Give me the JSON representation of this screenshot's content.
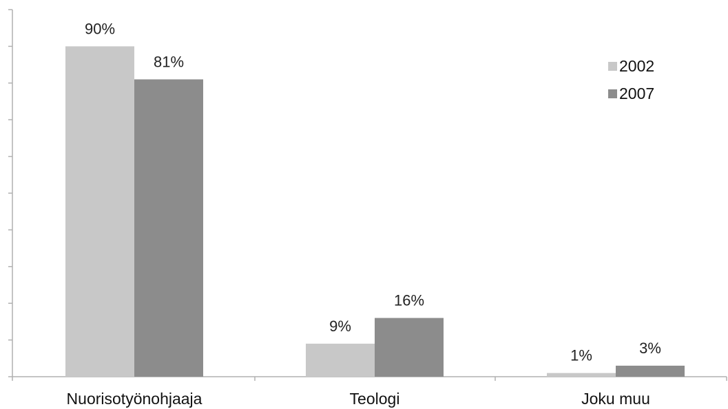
{
  "chart_data": {
    "type": "bar",
    "categories": [
      "Nuorisotyönohjaaja",
      "Teologi",
      "Joku muu"
    ],
    "series": [
      {
        "name": "2002",
        "values": [
          90,
          9,
          1
        ],
        "labels": [
          "90%",
          "9%",
          "1%"
        ],
        "color": "#c8c8c8"
      },
      {
        "name": "2007",
        "values": [
          81,
          16,
          3
        ],
        "labels": [
          "81%",
          "16%",
          "3%"
        ],
        "color": "#8c8c8c"
      }
    ],
    "ylim": [
      0,
      100
    ],
    "y_major_step": 10,
    "grid": false,
    "legend_position": "top-right",
    "axis_color": "#b0b0b0"
  }
}
